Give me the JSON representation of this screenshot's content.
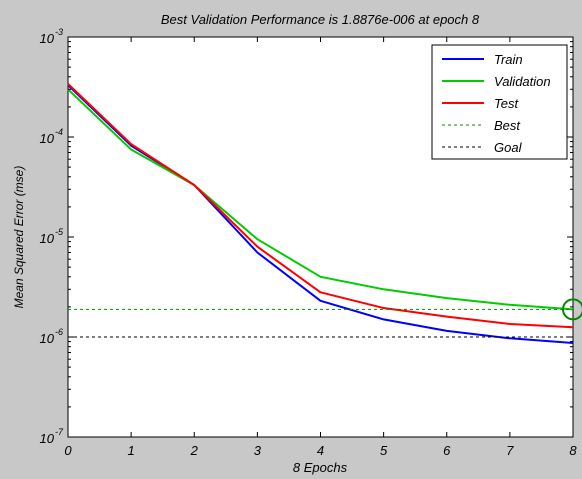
{
  "chart_data": {
    "type": "line",
    "title": "Best Validation Performance is 1.8876e-006 at epoch 8",
    "xlabel": "8 Epochs",
    "ylabel": "Mean Squared Error  (mse)",
    "xlim": [
      0,
      8
    ],
    "ylim": [
      1e-07,
      0.001
    ],
    "yscale": "log",
    "grid": false,
    "legend_position": "top-right",
    "x_ticks": [
      "0",
      "1",
      "2",
      "3",
      "4",
      "5",
      "6",
      "7",
      "8"
    ],
    "y_ticks": [
      {
        "base": "10",
        "exp": "-7",
        "value": 1e-07
      },
      {
        "base": "10",
        "exp": "-6",
        "value": 1e-06
      },
      {
        "base": "10",
        "exp": "-5",
        "value": 1e-05
      },
      {
        "base": "10",
        "exp": "-4",
        "value": 0.0001
      },
      {
        "base": "10",
        "exp": "-3",
        "value": 0.001
      }
    ],
    "x": [
      0,
      1,
      2,
      3,
      4,
      5,
      6,
      7,
      8
    ],
    "series": [
      {
        "name": "Train",
        "color": "#0000ff",
        "style": "solid",
        "values": [
          0.00033,
          8.2e-05,
          3.3e-05,
          7e-06,
          2.3e-06,
          1.5e-06,
          1.15e-06,
          9.7e-07,
          8.7e-07
        ]
      },
      {
        "name": "Validation",
        "color": "#00cc00",
        "style": "solid",
        "values": [
          0.0003,
          7.5e-05,
          3.3e-05,
          9.5e-06,
          4e-06,
          3e-06,
          2.45e-06,
          2.1e-06,
          1.8876e-06
        ]
      },
      {
        "name": "Test",
        "color": "#ff0000",
        "style": "solid",
        "values": [
          0.00034,
          8.5e-05,
          3.3e-05,
          8e-06,
          2.8e-06,
          1.95e-06,
          1.6e-06,
          1.35e-06,
          1.25e-06
        ]
      },
      {
        "name": "Best",
        "color": "#008800",
        "style": "dashed",
        "constant": 1.8876e-06
      },
      {
        "name": "Goal",
        "color": "#000000",
        "style": "dashed",
        "constant": 1e-06
      }
    ],
    "best_marker": {
      "x": 8,
      "y": 1.8876e-06,
      "color": "#008800"
    }
  }
}
